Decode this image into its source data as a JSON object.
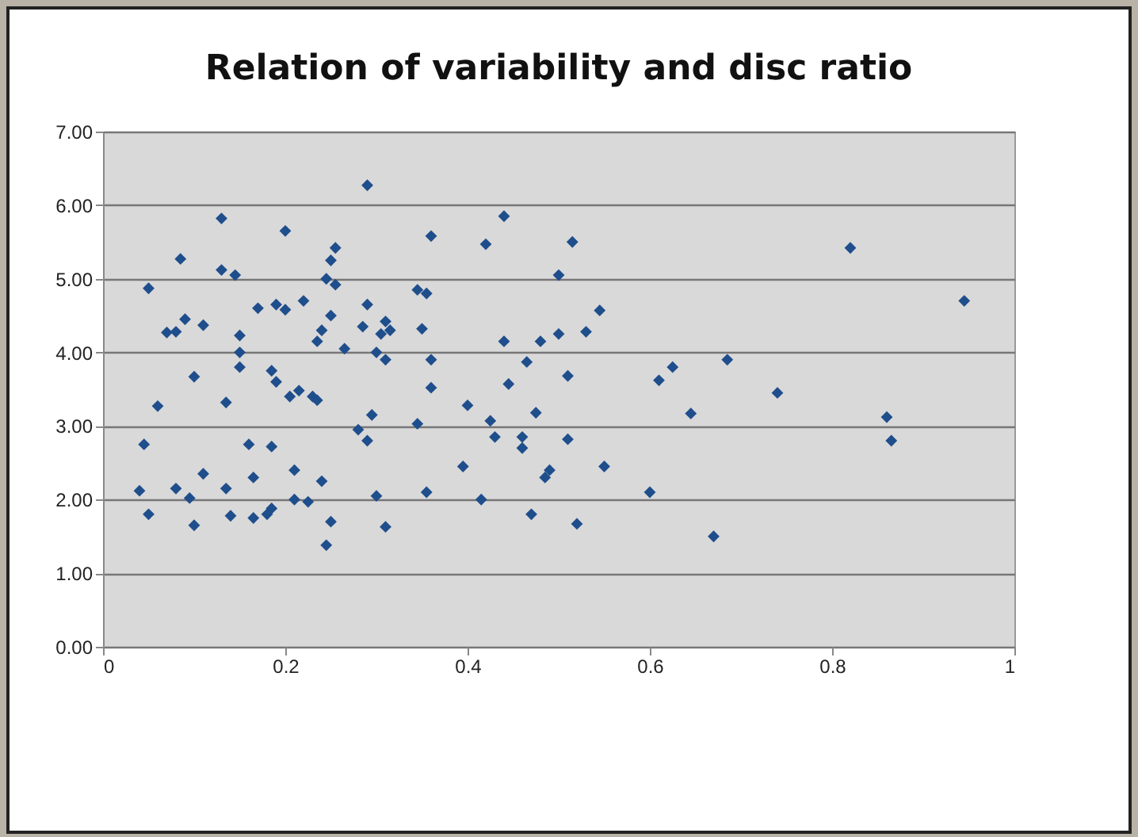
{
  "chart_data": {
    "type": "scatter",
    "title": "Relation of variability and disc ratio",
    "marker": "diamond",
    "grid": "y",
    "legend": false,
    "xlim": [
      0,
      1
    ],
    "xticks": [
      0,
      0.2,
      0.4,
      0.6,
      0.8,
      1
    ],
    "ylim": [
      0,
      7
    ],
    "yticks": [
      {
        "value": 0,
        "label": "0.00"
      },
      {
        "value": 1,
        "label": "1.00"
      },
      {
        "value": 2,
        "label": "2.00"
      },
      {
        "value": 3,
        "label": "3.00"
      },
      {
        "value": 4,
        "label": "4.00"
      },
      {
        "value": 5,
        "label": "5.00"
      },
      {
        "value": 6,
        "label": "6.00"
      },
      {
        "value": 7,
        "label": "7.00"
      }
    ],
    "series": [
      {
        "color": "#1f4e8c",
        "x": [
          0.04,
          0.045,
          0.05,
          0.05,
          0.06,
          0.07,
          0.08,
          0.08,
          0.085,
          0.09,
          0.095,
          0.1,
          0.1,
          0.11,
          0.11,
          0.13,
          0.13,
          0.135,
          0.135,
          0.14,
          0.145,
          0.15,
          0.15,
          0.15,
          0.16,
          0.165,
          0.165,
          0.17,
          0.18,
          0.185,
          0.185,
          0.185,
          0.19,
          0.19,
          0.2,
          0.2,
          0.205,
          0.21,
          0.21,
          0.215,
          0.22,
          0.225,
          0.23,
          0.235,
          0.235,
          0.24,
          0.24,
          0.245,
          0.245,
          0.25,
          0.25,
          0.255,
          0.255,
          0.25,
          0.265,
          0.28,
          0.285,
          0.29,
          0.29,
          0.29,
          0.295,
          0.3,
          0.3,
          0.305,
          0.31,
          0.31,
          0.31,
          0.315,
          0.345,
          0.345,
          0.35,
          0.355,
          0.355,
          0.36,
          0.36,
          0.36,
          0.395,
          0.4,
          0.415,
          0.42,
          0.425,
          0.43,
          0.44,
          0.44,
          0.445,
          0.46,
          0.46,
          0.465,
          0.47,
          0.475,
          0.48,
          0.485,
          0.49,
          0.5,
          0.5,
          0.51,
          0.51,
          0.515,
          0.52,
          0.53,
          0.545,
          0.55,
          0.6,
          0.61,
          0.625,
          0.645,
          0.67,
          0.685,
          0.74,
          0.82,
          0.86,
          0.865,
          0.945
        ],
        "values": [
          2.12,
          2.75,
          1.8,
          4.87,
          3.27,
          4.27,
          4.28,
          2.15,
          5.27,
          4.45,
          2.02,
          3.67,
          1.65,
          4.37,
          2.35,
          5.82,
          5.12,
          3.32,
          2.15,
          1.78,
          5.05,
          4.0,
          4.23,
          3.8,
          2.75,
          2.3,
          1.75,
          4.6,
          1.8,
          1.88,
          2.72,
          3.75,
          4.65,
          3.6,
          5.65,
          4.58,
          3.4,
          2.0,
          2.4,
          3.48,
          4.7,
          1.97,
          3.4,
          4.15,
          3.35,
          2.25,
          4.3,
          5.0,
          1.38,
          5.25,
          4.5,
          4.92,
          5.42,
          1.7,
          4.05,
          2.95,
          4.35,
          2.8,
          6.27,
          4.65,
          3.15,
          4.0,
          2.05,
          4.25,
          4.42,
          3.9,
          1.63,
          4.3,
          4.85,
          3.03,
          4.32,
          4.8,
          2.1,
          5.58,
          3.9,
          3.52,
          2.45,
          3.28,
          2.0,
          5.47,
          3.07,
          2.85,
          5.85,
          4.15,
          3.57,
          2.7,
          2.85,
          3.87,
          1.8,
          3.18,
          4.15,
          2.3,
          2.4,
          4.25,
          5.05,
          3.68,
          2.82,
          5.5,
          1.67,
          4.28,
          4.57,
          2.45,
          2.1,
          3.62,
          3.8,
          3.17,
          1.5,
          3.9,
          3.45,
          5.42,
          3.12,
          2.8,
          4.7
        ]
      }
    ]
  }
}
